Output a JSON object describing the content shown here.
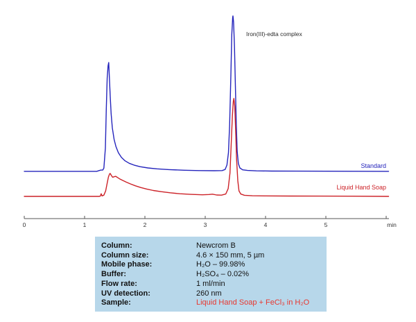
{
  "chart_data": {
    "type": "line",
    "title": "",
    "annotation": "Iron(III)-edta complex",
    "x_axis": {
      "label": "min",
      "min": 0,
      "max": 6,
      "ticks": [
        0,
        1,
        2,
        3,
        4,
        5
      ],
      "grid": false
    },
    "y_axis": {
      "label": "",
      "shown": false
    },
    "legend_position": "right-inline",
    "axis_color": "#555555",
    "tick_label_color": "#333333",
    "annotation_color": "#2b2b2b",
    "series": [
      {
        "name": "Standard",
        "slug": "standard",
        "color": "#2424bc",
        "offset": 30.4,
        "points": [
          [
            0,
            0
          ],
          [
            0.3,
            0
          ],
          [
            0.6,
            0
          ],
          [
            0.9,
            0
          ],
          [
            1.1,
            0
          ],
          [
            1.2,
            0
          ],
          [
            1.24,
            0.5
          ],
          [
            1.27,
            0.8
          ],
          [
            1.3,
            0.8
          ],
          [
            1.32,
            2
          ],
          [
            1.345,
            15
          ],
          [
            1.36,
            40
          ],
          [
            1.375,
            60
          ],
          [
            1.39,
            68
          ],
          [
            1.4,
            70
          ],
          [
            1.412,
            60
          ],
          [
            1.425,
            48
          ],
          [
            1.44,
            37
          ],
          [
            1.46,
            28
          ],
          [
            1.49,
            20.5
          ],
          [
            1.52,
            16
          ],
          [
            1.56,
            12
          ],
          [
            1.61,
            9
          ],
          [
            1.67,
            6.8
          ],
          [
            1.74,
            5.2
          ],
          [
            1.82,
            4
          ],
          [
            1.92,
            3
          ],
          [
            2.05,
            2.2
          ],
          [
            2.2,
            1.6
          ],
          [
            2.4,
            1.1
          ],
          [
            2.65,
            0.7
          ],
          [
            2.9,
            0.5
          ],
          [
            3.15,
            0.4
          ],
          [
            3.28,
            0.5
          ],
          [
            3.33,
            1.2
          ],
          [
            3.36,
            4
          ],
          [
            3.385,
            12
          ],
          [
            3.405,
            30
          ],
          [
            3.425,
            62
          ],
          [
            3.44,
            88
          ],
          [
            3.455,
            99
          ],
          [
            3.46,
            100
          ],
          [
            3.47,
            96
          ],
          [
            3.485,
            80
          ],
          [
            3.5,
            55
          ],
          [
            3.515,
            30
          ],
          [
            3.53,
            13
          ],
          [
            3.55,
            5
          ],
          [
            3.575,
            2.2
          ],
          [
            3.62,
            1
          ],
          [
            3.7,
            0.6
          ],
          [
            3.85,
            0.3
          ],
          [
            4.1,
            0.2
          ],
          [
            4.5,
            0.15
          ],
          [
            5,
            0.1
          ],
          [
            5.5,
            0.05
          ],
          [
            6.04,
            0
          ]
        ]
      },
      {
        "name": "Liquid Hand Soap",
        "slug": "liquid-hand-soap",
        "color": "#cc2127",
        "offset": 14.3,
        "points": [
          [
            0,
            0
          ],
          [
            0.4,
            0
          ],
          [
            0.8,
            0
          ],
          [
            1.1,
            0
          ],
          [
            1.2,
            0
          ],
          [
            1.24,
            0
          ],
          [
            1.26,
            0.1
          ],
          [
            1.275,
            1.7
          ],
          [
            1.29,
            0.3
          ],
          [
            1.32,
            0.8
          ],
          [
            1.35,
            3.5
          ],
          [
            1.375,
            8.5
          ],
          [
            1.395,
            12.5
          ],
          [
            1.415,
            14.5
          ],
          [
            1.425,
            14.7
          ],
          [
            1.445,
            13.4
          ],
          [
            1.465,
            12.3
          ],
          [
            1.49,
            12.6
          ],
          [
            1.515,
            12.9
          ],
          [
            1.54,
            12.3
          ],
          [
            1.58,
            11.3
          ],
          [
            1.63,
            10.3
          ],
          [
            1.69,
            9.2
          ],
          [
            1.76,
            8
          ],
          [
            1.84,
            6.8
          ],
          [
            1.93,
            5.7
          ],
          [
            2.03,
            4.7
          ],
          [
            2.14,
            3.8
          ],
          [
            2.27,
            3
          ],
          [
            2.42,
            2.3
          ],
          [
            2.58,
            1.7
          ],
          [
            2.76,
            1.3
          ],
          [
            2.95,
            1
          ],
          [
            3.06,
            1.2
          ],
          [
            3.12,
            1.4
          ],
          [
            3.19,
            0.9
          ],
          [
            3.27,
            0.8
          ],
          [
            3.34,
            1.5
          ],
          [
            3.38,
            5
          ],
          [
            3.41,
            15
          ],
          [
            3.43,
            33
          ],
          [
            3.45,
            52
          ],
          [
            3.465,
            61
          ],
          [
            3.475,
            63
          ],
          [
            3.49,
            58
          ],
          [
            3.505,
            42
          ],
          [
            3.52,
            24
          ],
          [
            3.54,
            10
          ],
          [
            3.56,
            3.5
          ],
          [
            3.59,
            1.5
          ],
          [
            3.65,
            0.7
          ],
          [
            3.78,
            0.4
          ],
          [
            4,
            0.3
          ],
          [
            4.4,
            0.2
          ],
          [
            4.9,
            0.15
          ],
          [
            5.4,
            0.1
          ],
          [
            6.04,
            0
          ]
        ]
      }
    ]
  },
  "spec_table": {
    "background": "#b7d7ea",
    "accent_color": "#e8372f",
    "rows": [
      {
        "label": "Column:",
        "value": "Newcrom B"
      },
      {
        "label": "Column size:",
        "value": "4.6 × 150 mm, 5 µm"
      },
      {
        "label": "Mobile phase:",
        "value": "H₂O – 99.98%"
      },
      {
        "label": "Buffer:",
        "value": "H₂SO₄ – 0.02%"
      },
      {
        "label": "Flow rate:",
        "value": "1 ml/min"
      },
      {
        "label": "UV detection:",
        "value": "260 nm"
      },
      {
        "label": "Sample:",
        "value": "Liquid Hand Soap + FeCl₃ in H₂O",
        "accent": true
      }
    ]
  }
}
